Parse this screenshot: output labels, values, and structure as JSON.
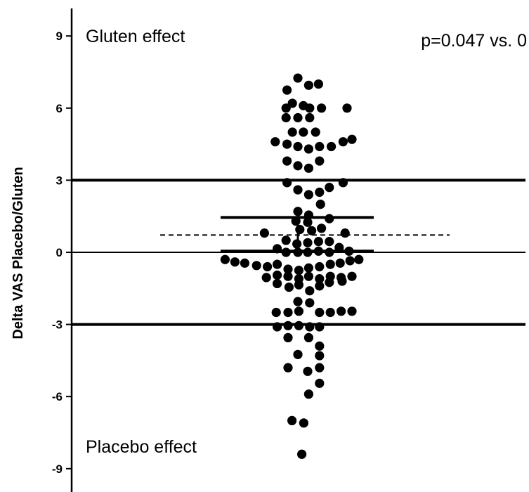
{
  "chart_data": {
    "type": "scatter",
    "ylabel": "Delta VAS Placebo/Gluten",
    "xlabel": "",
    "title": "",
    "ylim": [
      -9.6,
      10
    ],
    "yticks": [
      -9,
      -6,
      -3,
      0,
      3,
      6,
      9
    ],
    "ytick_labels": [
      "-9",
      "-6",
      "-3",
      "0",
      "3",
      "6",
      "9"
    ],
    "grid": false,
    "legend": "none",
    "annotations": {
      "top_left": "Gluten effect",
      "top_right": "p=0.047 vs. 0",
      "bottom_left": "Placebo effect"
    },
    "reference_lines": [
      {
        "name": "zero",
        "y": 0,
        "style": "solid",
        "weight": "thin"
      },
      {
        "name": "upper-threshold",
        "y": 3,
        "style": "solid",
        "weight": "thick"
      },
      {
        "name": "lower-threshold",
        "y": -3,
        "style": "solid",
        "weight": "thick"
      },
      {
        "name": "mean",
        "y": 0.72,
        "style": "dashed",
        "weight": "thin"
      }
    ],
    "error_bars": {
      "mean": 0.72,
      "upper": 1.45,
      "lower": 0.05
    },
    "series": [
      {
        "points": [
          {
            "x": 0.0,
            "y": 7.25
          },
          {
            "x": -0.55,
            "y": 6.75
          },
          {
            "x": 0.55,
            "y": 6.95
          },
          {
            "x": 1.05,
            "y": 7.0
          },
          {
            "x": -0.28,
            "y": 6.2
          },
          {
            "x": 0.28,
            "y": 6.1
          },
          {
            "x": -0.6,
            "y": 6.0
          },
          {
            "x": 0.6,
            "y": 6.0
          },
          {
            "x": 1.2,
            "y": 6.0
          },
          {
            "x": 2.5,
            "y": 6.0
          },
          {
            "x": -0.6,
            "y": 5.6
          },
          {
            "x": 0.0,
            "y": 5.6
          },
          {
            "x": 0.6,
            "y": 5.6
          },
          {
            "x": -0.28,
            "y": 5.0
          },
          {
            "x": 0.28,
            "y": 5.0
          },
          {
            "x": 0.9,
            "y": 5.0
          },
          {
            "x": -1.15,
            "y": 4.6
          },
          {
            "x": -0.55,
            "y": 4.5
          },
          {
            "x": 0.0,
            "y": 4.4
          },
          {
            "x": 0.55,
            "y": 4.3
          },
          {
            "x": 1.1,
            "y": 4.4
          },
          {
            "x": 1.7,
            "y": 4.4
          },
          {
            "x": 2.3,
            "y": 4.6
          },
          {
            "x": 2.75,
            "y": 4.7
          },
          {
            "x": -0.55,
            "y": 3.8
          },
          {
            "x": 0.0,
            "y": 3.6
          },
          {
            "x": 0.55,
            "y": 3.5
          },
          {
            "x": 1.1,
            "y": 3.8
          },
          {
            "x": -0.55,
            "y": 2.9
          },
          {
            "x": 0.0,
            "y": 2.6
          },
          {
            "x": 0.55,
            "y": 2.4
          },
          {
            "x": 1.1,
            "y": 2.5
          },
          {
            "x": 1.6,
            "y": 2.7
          },
          {
            "x": 2.3,
            "y": 2.9
          },
          {
            "x": 1.15,
            "y": 2.0
          },
          {
            "x": 0.0,
            "y": 1.7
          },
          {
            "x": 0.55,
            "y": 1.55
          },
          {
            "x": -0.1,
            "y": 1.3
          },
          {
            "x": 0.5,
            "y": 1.25
          },
          {
            "x": 1.6,
            "y": 1.4
          },
          {
            "x": 0.1,
            "y": 0.95
          },
          {
            "x": 0.7,
            "y": 0.9
          },
          {
            "x": 1.2,
            "y": 1.0
          },
          {
            "x": -1.7,
            "y": 0.8
          },
          {
            "x": 2.4,
            "y": 0.8
          },
          {
            "x": -0.6,
            "y": 0.5
          },
          {
            "x": -0.05,
            "y": 0.35
          },
          {
            "x": 0.5,
            "y": 0.4
          },
          {
            "x": 1.05,
            "y": 0.45
          },
          {
            "x": 1.6,
            "y": 0.45
          },
          {
            "x": -1.05,
            "y": 0.15
          },
          {
            "x": 2.1,
            "y": 0.2
          },
          {
            "x": -0.6,
            "y": 0.0
          },
          {
            "x": 0.0,
            "y": 0.0
          },
          {
            "x": 0.5,
            "y": 0.0
          },
          {
            "x": 1.05,
            "y": 0.05
          },
          {
            "x": 1.6,
            "y": 0.0
          },
          {
            "x": 2.6,
            "y": 0.05
          },
          {
            "x": -3.7,
            "y": -0.3
          },
          {
            "x": -3.2,
            "y": -0.4
          },
          {
            "x": -2.7,
            "y": -0.45
          },
          {
            "x": -2.1,
            "y": -0.55
          },
          {
            "x": -1.55,
            "y": -0.6
          },
          {
            "x": -1.05,
            "y": -0.5
          },
          {
            "x": -0.5,
            "y": -0.7
          },
          {
            "x": 0.05,
            "y": -0.75
          },
          {
            "x": 0.55,
            "y": -0.65
          },
          {
            "x": 1.1,
            "y": -0.6
          },
          {
            "x": 1.65,
            "y": -0.5
          },
          {
            "x": 2.15,
            "y": -0.45
          },
          {
            "x": 2.65,
            "y": -0.35
          },
          {
            "x": 3.1,
            "y": -0.3
          },
          {
            "x": -1.6,
            "y": -1.05
          },
          {
            "x": -1.05,
            "y": -0.95
          },
          {
            "x": -0.5,
            "y": -1.0
          },
          {
            "x": 0.05,
            "y": -1.1
          },
          {
            "x": 0.55,
            "y": -1.0
          },
          {
            "x": 1.1,
            "y": -1.1
          },
          {
            "x": 1.65,
            "y": -1.0
          },
          {
            "x": 2.2,
            "y": -1.05
          },
          {
            "x": 2.75,
            "y": -1.0
          },
          {
            "x": 2.25,
            "y": -1.2
          },
          {
            "x": -1.05,
            "y": -1.3
          },
          {
            "x": -0.45,
            "y": -1.45
          },
          {
            "x": 0.05,
            "y": -1.35
          },
          {
            "x": 0.6,
            "y": -1.6
          },
          {
            "x": 1.1,
            "y": -1.4
          },
          {
            "x": 1.6,
            "y": -1.25
          },
          {
            "x": 0.0,
            "y": -2.05
          },
          {
            "x": 0.6,
            "y": -2.1
          },
          {
            "x": -0.5,
            "y": -2.5
          },
          {
            "x": -1.1,
            "y": -2.5
          },
          {
            "x": 0.05,
            "y": -2.45
          },
          {
            "x": 1.1,
            "y": -2.5
          },
          {
            "x": 1.65,
            "y": -2.5
          },
          {
            "x": 2.2,
            "y": -2.45
          },
          {
            "x": 2.75,
            "y": -2.45
          },
          {
            "x": -1.05,
            "y": -3.1
          },
          {
            "x": -0.5,
            "y": -3.05
          },
          {
            "x": 0.05,
            "y": -3.05
          },
          {
            "x": 0.6,
            "y": -3.1
          },
          {
            "x": 1.1,
            "y": -3.1
          },
          {
            "x": -0.5,
            "y": -3.55
          },
          {
            "x": 0.55,
            "y": -3.55
          },
          {
            "x": 1.1,
            "y": -3.9
          },
          {
            "x": 0.0,
            "y": -4.25
          },
          {
            "x": 1.1,
            "y": -4.3
          },
          {
            "x": -0.5,
            "y": -4.8
          },
          {
            "x": 0.5,
            "y": -4.95
          },
          {
            "x": 1.1,
            "y": -4.8
          },
          {
            "x": 1.1,
            "y": -5.45
          },
          {
            "x": 0.55,
            "y": -5.9
          },
          {
            "x": -0.3,
            "y": -7.0
          },
          {
            "x": 0.3,
            "y": -7.1
          },
          {
            "x": 0.2,
            "y": -8.4
          }
        ]
      }
    ]
  }
}
